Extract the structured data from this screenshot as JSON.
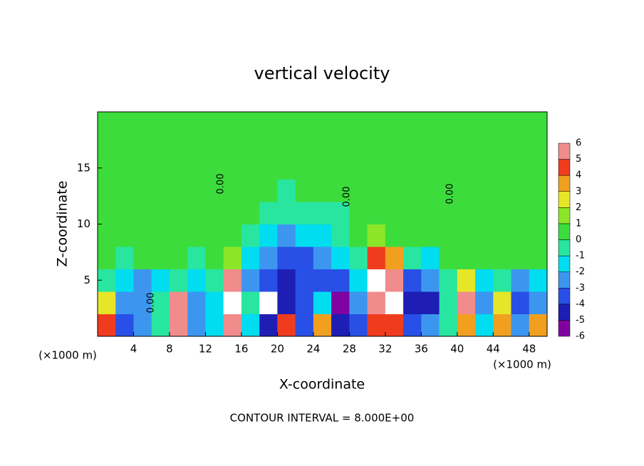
{
  "chart_data": {
    "type": "heatmap",
    "title": "vertical velocity",
    "xlabel": "X-coordinate",
    "ylabel": "Z-coordinate",
    "x_unit": "(×1000 m)",
    "footer": "CONTOUR INTERVAL = 8.000E+00",
    "contour_label": "0.00",
    "x": [
      1,
      3,
      5,
      7,
      9,
      11,
      13,
      15,
      17,
      19,
      21,
      23,
      25,
      27,
      29,
      31,
      33,
      35,
      37,
      39,
      41,
      43,
      45,
      47,
      49
    ],
    "y": [
      1,
      3,
      5,
      7,
      9,
      11,
      13,
      15,
      17,
      19
    ],
    "xlim": [
      0,
      50
    ],
    "ylim": [
      0,
      20
    ],
    "xticks": [
      4,
      8,
      12,
      16,
      20,
      24,
      28,
      32,
      36,
      40,
      44,
      48
    ],
    "yticks": [
      5,
      10,
      15
    ],
    "values": [
      [
        4,
        -4,
        -3,
        -1,
        5,
        -3,
        -2,
        5,
        -2,
        -5,
        4,
        -4,
        3,
        -5,
        -4,
        4,
        4,
        -4,
        -3,
        -1,
        3,
        -2,
        3,
        -3,
        3
      ],
      [
        2,
        -3,
        -3,
        -1,
        6,
        -3,
        -2,
        7,
        -1,
        7,
        -5,
        -4,
        -2,
        -6,
        -3,
        6,
        7,
        -5,
        -5,
        -1,
        6,
        -3,
        2,
        -4,
        -3
      ],
      [
        -1,
        -2,
        -3,
        -2,
        -1,
        -2,
        -1,
        5,
        -3,
        -4,
        -5,
        -4,
        -4,
        -4,
        -2,
        7,
        6,
        -4,
        -3,
        -1,
        2,
        -2,
        -1,
        -3,
        -2
      ],
      [
        0,
        -1,
        0,
        0,
        0,
        -1,
        0,
        1,
        -2,
        -3,
        -4,
        -4,
        -3,
        -2,
        -1,
        4,
        3,
        -1,
        -2,
        0,
        0,
        0,
        0,
        0,
        0
      ],
      [
        0,
        0,
        0,
        0,
        0,
        0,
        0,
        0,
        -1,
        -2,
        -3,
        -2,
        -2,
        -1,
        0,
        1,
        0,
        0,
        0,
        0,
        0,
        0,
        0,
        0,
        0
      ],
      [
        0,
        0,
        0,
        0,
        0,
        0,
        0,
        0,
        0,
        -1,
        -1,
        -1,
        -1,
        -1,
        0,
        0,
        0,
        0,
        0,
        0,
        0,
        0,
        0,
        0,
        0
      ],
      [
        0,
        0,
        0,
        0,
        0,
        0,
        0,
        0,
        0,
        0,
        -1,
        0,
        0,
        0,
        0,
        0,
        0,
        0,
        0,
        0,
        0,
        0,
        0,
        0,
        0
      ],
      [
        0,
        0,
        0,
        0,
        0,
        0,
        0,
        0,
        0,
        0,
        0,
        0,
        0,
        0,
        0,
        0,
        0,
        0,
        0,
        0,
        0,
        0,
        0,
        0,
        0
      ],
      [
        0,
        0,
        0,
        0,
        0,
        0,
        0,
        0,
        0,
        0,
        0,
        0,
        0,
        0,
        0,
        0,
        0,
        0,
        0,
        0,
        0,
        0,
        0,
        0,
        0
      ],
      [
        0,
        0,
        0,
        0,
        0,
        0,
        0,
        0,
        0,
        0,
        0,
        0,
        0,
        0,
        0,
        0,
        0,
        0,
        0,
        0,
        0,
        0,
        0,
        0,
        0
      ]
    ],
    "colorbar": {
      "levels": [
        -6,
        -5,
        -4,
        -3,
        -2,
        -1,
        0,
        1,
        2,
        3,
        4,
        5,
        6
      ],
      "colors": [
        "#8000a0",
        "#1e1eb4",
        "#2850e6",
        "#3c96f0",
        "#00dcf0",
        "#28e6a0",
        "#3cdc3c",
        "#8ce628",
        "#e6e628",
        "#f0a01e",
        "#f03c1e",
        "#f08c8c"
      ],
      "over_color": "#ffffff"
    }
  }
}
